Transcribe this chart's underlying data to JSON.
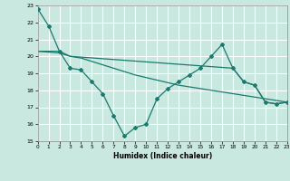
{
  "title": "",
  "xlabel": "Humidex (Indice chaleur)",
  "xlim": [
    0,
    23
  ],
  "ylim": [
    15,
    23
  ],
  "xticks": [
    0,
    1,
    2,
    3,
    4,
    5,
    6,
    7,
    8,
    9,
    10,
    11,
    12,
    13,
    14,
    15,
    16,
    17,
    18,
    19,
    20,
    21,
    22,
    23
  ],
  "yticks": [
    15,
    16,
    17,
    18,
    19,
    20,
    21,
    22,
    23
  ],
  "bg_color": "#c8e8e0",
  "grid_color": "#b0d8d0",
  "line_color": "#1a7a6e",
  "line1_x": [
    0,
    1,
    2,
    3,
    4,
    5,
    6,
    7,
    8,
    9,
    10,
    11,
    12,
    13,
    14,
    15,
    16,
    17,
    18,
    19,
    20,
    21,
    22,
    23
  ],
  "line1_y": [
    22.8,
    21.8,
    20.3,
    19.3,
    19.2,
    18.5,
    17.8,
    16.5,
    15.3,
    15.8,
    16.0,
    17.5,
    18.1,
    18.5,
    18.9,
    19.3,
    20.0,
    20.7,
    19.3,
    18.5,
    18.3,
    17.3,
    17.2,
    17.3
  ],
  "line2_x": [
    0,
    2,
    3,
    18,
    19,
    20,
    21,
    22,
    23
  ],
  "line2_y": [
    20.3,
    20.3,
    20.0,
    19.3,
    18.5,
    18.3,
    17.3,
    17.2,
    17.3
  ],
  "line3_x": [
    0,
    1,
    2,
    3,
    4,
    5,
    6,
    7,
    8,
    9,
    10,
    11,
    12,
    13,
    14,
    15,
    16,
    17,
    18,
    19,
    20,
    21,
    22,
    23
  ],
  "line3_y": [
    20.3,
    20.25,
    20.2,
    20.0,
    19.9,
    19.7,
    19.5,
    19.3,
    19.1,
    18.9,
    18.75,
    18.6,
    18.45,
    18.3,
    18.2,
    18.1,
    18.0,
    17.9,
    17.8,
    17.7,
    17.6,
    17.5,
    17.4,
    17.3
  ]
}
